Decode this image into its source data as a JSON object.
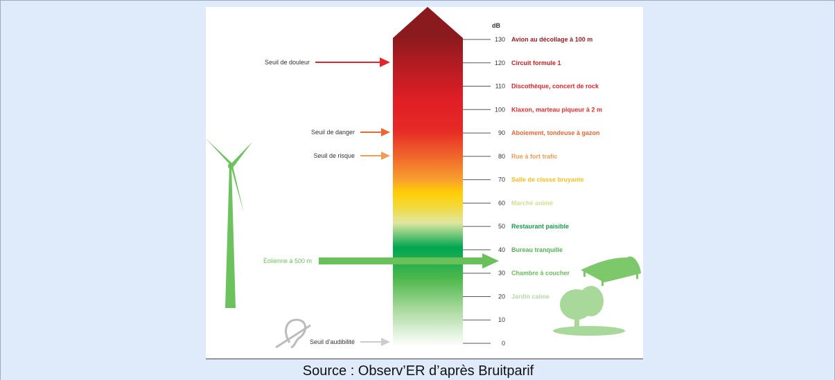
{
  "unit": "dB",
  "levels": [
    {
      "db": 130,
      "label": "Avion au décollage à 100 m",
      "color": "#9e1b1f"
    },
    {
      "db": 120,
      "label": "Circuit formule 1",
      "color": "#d7191c"
    },
    {
      "db": 110,
      "label": "Discothèque, concert de rock",
      "color": "#e0202a"
    },
    {
      "db": 100,
      "label": "Klaxon, marteau piqueur à 2 m",
      "color": "#e42d2d"
    },
    {
      "db": 90,
      "label": "Aboiement, tondeuse à gazon",
      "color": "#ef6530"
    },
    {
      "db": 80,
      "label": "Rue à fort trafic",
      "color": "#f59a55"
    },
    {
      "db": 70,
      "label": "Salle de classe bruyante",
      "color": "#f6bf1c"
    },
    {
      "db": 60,
      "label": "Marché animé",
      "color": "#d3df8e"
    },
    {
      "db": 50,
      "label": "Restaurant paisible",
      "color": "#16a04c"
    },
    {
      "db": 40,
      "label": "Bureau tranquille",
      "color": "#56b553"
    },
    {
      "db": 30,
      "label": "Chambre à coucher",
      "color": "#66bd58"
    },
    {
      "db": 20,
      "label": "Jardin calme",
      "color": "#b3dba6"
    },
    {
      "db": 10
    },
    {
      "db": 0
    }
  ],
  "annotations": {
    "pain": "Seuil de douleur",
    "danger": "Seuil de danger",
    "risk": "Seuil de risque",
    "wind": "Éolienne à 500 m",
    "audibility": "Seuil d’audibilité"
  },
  "caption": "Source : Observ’ER d’après Bruitparif"
}
